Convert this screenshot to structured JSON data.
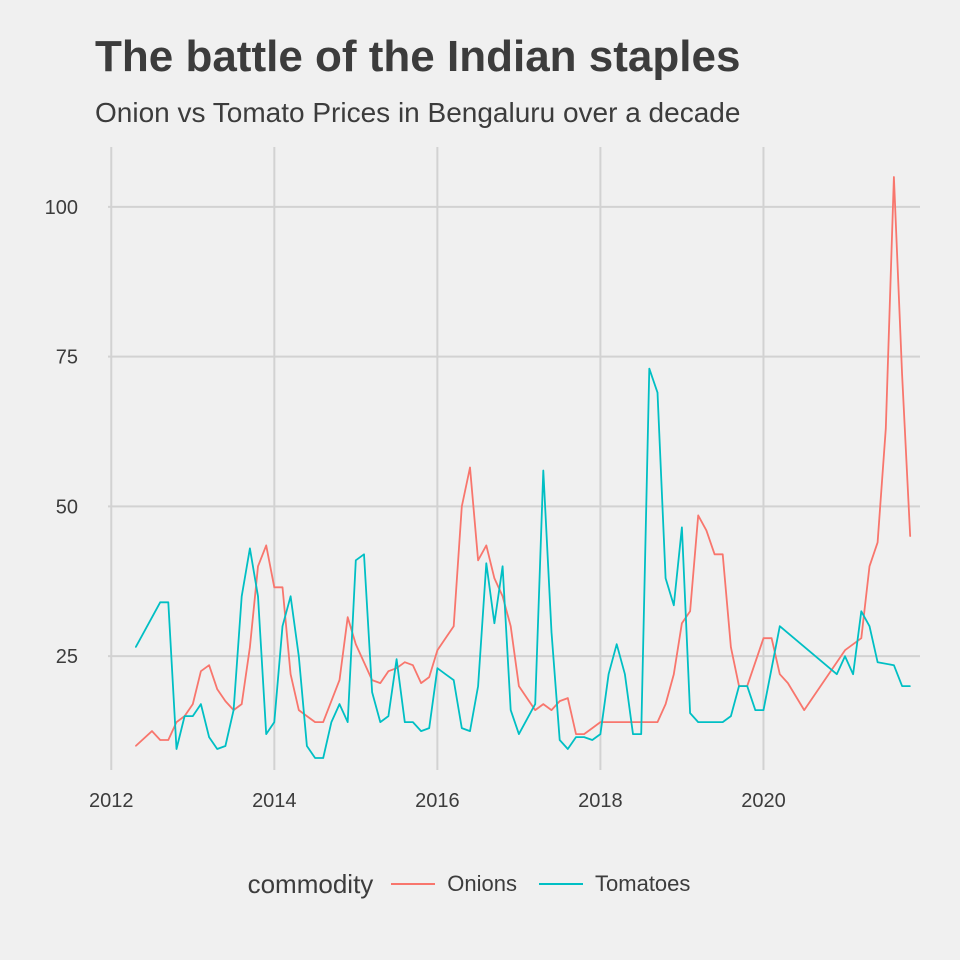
{
  "title": "The battle of the Indian staples",
  "subtitle": "Onion vs Tomato Prices in Bengaluru over a decade",
  "colors": {
    "background": "#f0f0f0",
    "grid": "#d2d2d2",
    "text": "#3c3c3c"
  },
  "legend": {
    "title": "commodity",
    "items": [
      {
        "label": "Onions",
        "color": "#f8766d"
      },
      {
        "label": "Tomatoes",
        "color": "#00bfc4"
      }
    ]
  },
  "chart_data": {
    "type": "line",
    "title": "The battle of the Indian staples",
    "subtitle": "Onion vs Tomato Prices in Bengaluru over a decade",
    "xlabel": "",
    "ylabel": "",
    "xlim": [
      2011.96,
      2021.92
    ],
    "ylim": [
      6,
      110
    ],
    "x_ticks": [
      2012,
      2014,
      2016,
      2018,
      2020
    ],
    "y_ticks": [
      25,
      50,
      75,
      100
    ],
    "grid": true,
    "legend_position": "bottom",
    "series": [
      {
        "name": "Onions",
        "color": "#f8766d",
        "points": [
          [
            2012.3,
            10
          ],
          [
            2012.5,
            12.5
          ],
          [
            2012.6,
            11
          ],
          [
            2012.7,
            11
          ],
          [
            2012.8,
            14
          ],
          [
            2012.9,
            15
          ],
          [
            2013.0,
            17
          ],
          [
            2013.1,
            22.5
          ],
          [
            2013.2,
            23.5
          ],
          [
            2013.3,
            19.5
          ],
          [
            2013.4,
            17.5
          ],
          [
            2013.5,
            16
          ],
          [
            2013.6,
            17
          ],
          [
            2013.7,
            26.5
          ],
          [
            2013.8,
            40
          ],
          [
            2013.9,
            43.5
          ],
          [
            2014.0,
            36.5
          ],
          [
            2014.1,
            36.5
          ],
          [
            2014.2,
            22
          ],
          [
            2014.3,
            16
          ],
          [
            2014.4,
            15
          ],
          [
            2014.5,
            14
          ],
          [
            2014.6,
            14
          ],
          [
            2014.8,
            21
          ],
          [
            2014.9,
            31.5
          ],
          [
            2015.0,
            27
          ],
          [
            2015.2,
            21
          ],
          [
            2015.3,
            20.5
          ],
          [
            2015.4,
            22.5
          ],
          [
            2015.5,
            23
          ],
          [
            2015.6,
            24
          ],
          [
            2015.7,
            23.5
          ],
          [
            2015.8,
            20.5
          ],
          [
            2015.9,
            21.5
          ],
          [
            2016.0,
            26
          ],
          [
            2016.2,
            30
          ],
          [
            2016.3,
            50
          ],
          [
            2016.4,
            56.5
          ],
          [
            2016.5,
            41
          ],
          [
            2016.6,
            43.5
          ],
          [
            2016.7,
            38
          ],
          [
            2016.8,
            35
          ],
          [
            2016.9,
            30
          ],
          [
            2017.0,
            20
          ],
          [
            2017.1,
            18
          ],
          [
            2017.2,
            16
          ],
          [
            2017.3,
            17
          ],
          [
            2017.4,
            16
          ],
          [
            2017.5,
            17.5
          ],
          [
            2017.6,
            18
          ],
          [
            2017.7,
            12
          ],
          [
            2017.8,
            12
          ],
          [
            2017.9,
            13
          ],
          [
            2018.0,
            14
          ],
          [
            2018.5,
            14
          ],
          [
            2018.6,
            14
          ],
          [
            2018.7,
            14
          ],
          [
            2018.8,
            17
          ],
          [
            2018.9,
            22
          ],
          [
            2019.0,
            30.5
          ],
          [
            2019.1,
            32.5
          ],
          [
            2019.2,
            48.5
          ],
          [
            2019.3,
            46
          ],
          [
            2019.4,
            42
          ],
          [
            2019.5,
            42
          ],
          [
            2019.6,
            26.5
          ],
          [
            2019.7,
            20
          ],
          [
            2019.8,
            20
          ],
          [
            2020.0,
            28
          ],
          [
            2020.1,
            28
          ],
          [
            2020.2,
            22
          ],
          [
            2020.3,
            20.5
          ],
          [
            2020.5,
            16
          ],
          [
            2021.0,
            26
          ],
          [
            2021.2,
            28
          ],
          [
            2021.3,
            40
          ],
          [
            2021.4,
            44
          ],
          [
            2021.5,
            63
          ],
          [
            2021.6,
            105
          ],
          [
            2021.7,
            72
          ],
          [
            2021.8,
            45
          ]
        ]
      },
      {
        "name": "Tomatoes",
        "color": "#00bfc4",
        "points": [
          [
            2012.3,
            26.5
          ],
          [
            2012.6,
            34
          ],
          [
            2012.7,
            34
          ],
          [
            2012.8,
            9.5
          ],
          [
            2012.9,
            15
          ],
          [
            2013.0,
            15
          ],
          [
            2013.1,
            17
          ],
          [
            2013.2,
            11.5
          ],
          [
            2013.3,
            9.5
          ],
          [
            2013.4,
            10
          ],
          [
            2013.5,
            16
          ],
          [
            2013.6,
            35
          ],
          [
            2013.7,
            43
          ],
          [
            2013.8,
            35
          ],
          [
            2013.9,
            12
          ],
          [
            2014.0,
            14
          ],
          [
            2014.1,
            30
          ],
          [
            2014.2,
            35
          ],
          [
            2014.3,
            25
          ],
          [
            2014.4,
            10
          ],
          [
            2014.5,
            8
          ],
          [
            2014.6,
            8
          ],
          [
            2014.7,
            14
          ],
          [
            2014.8,
            17
          ],
          [
            2014.9,
            14
          ],
          [
            2015.0,
            41
          ],
          [
            2015.1,
            42
          ],
          [
            2015.2,
            19
          ],
          [
            2015.3,
            14
          ],
          [
            2015.4,
            15
          ],
          [
            2015.5,
            24.5
          ],
          [
            2015.6,
            14
          ],
          [
            2015.7,
            14
          ],
          [
            2015.8,
            12.5
          ],
          [
            2015.9,
            13
          ],
          [
            2016.0,
            23
          ],
          [
            2016.1,
            22
          ],
          [
            2016.2,
            21
          ],
          [
            2016.3,
            13
          ],
          [
            2016.4,
            12.5
          ],
          [
            2016.5,
            20
          ],
          [
            2016.6,
            40.5
          ],
          [
            2016.7,
            30.5
          ],
          [
            2016.8,
            40
          ],
          [
            2016.9,
            16
          ],
          [
            2017.0,
            12
          ],
          [
            2017.2,
            17
          ],
          [
            2017.3,
            56
          ],
          [
            2017.4,
            29
          ],
          [
            2017.5,
            11
          ],
          [
            2017.6,
            9.5
          ],
          [
            2017.7,
            11.5
          ],
          [
            2017.8,
            11.5
          ],
          [
            2017.9,
            11
          ],
          [
            2018.0,
            12
          ],
          [
            2018.1,
            22
          ],
          [
            2018.2,
            27
          ],
          [
            2018.3,
            22
          ],
          [
            2018.4,
            12
          ],
          [
            2018.5,
            12
          ],
          [
            2018.6,
            73
          ],
          [
            2018.7,
            69
          ],
          [
            2018.8,
            38
          ],
          [
            2018.9,
            33.5
          ],
          [
            2019.0,
            46.5
          ],
          [
            2019.1,
            15.5
          ],
          [
            2019.2,
            14
          ],
          [
            2019.5,
            14
          ],
          [
            2019.6,
            15
          ],
          [
            2019.7,
            20
          ],
          [
            2019.8,
            20
          ],
          [
            2019.9,
            16
          ],
          [
            2020.0,
            16
          ],
          [
            2020.2,
            30
          ],
          [
            2020.9,
            22
          ],
          [
            2021.0,
            25
          ],
          [
            2021.1,
            22
          ],
          [
            2021.2,
            32.5
          ],
          [
            2021.3,
            30
          ],
          [
            2021.4,
            24
          ],
          [
            2021.6,
            23.5
          ],
          [
            2021.7,
            20
          ],
          [
            2021.8,
            20
          ]
        ]
      }
    ]
  }
}
